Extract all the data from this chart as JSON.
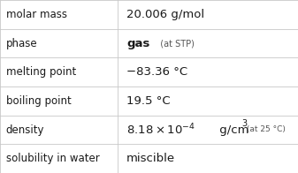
{
  "rows": [
    {
      "label": "molar mass",
      "value": "20.006 g/mol",
      "type": "normal"
    },
    {
      "label": "phase",
      "value": "gas",
      "type": "phase"
    },
    {
      "label": "melting point",
      "value": "−83.36 °C",
      "type": "normal"
    },
    {
      "label": "boiling point",
      "value": "19.5 °C",
      "type": "normal"
    },
    {
      "label": "density",
      "value": "",
      "type": "density"
    },
    {
      "label": "solubility in water",
      "value": "miscible",
      "type": "normal"
    }
  ],
  "col_split": 0.395,
  "border_color": "#c8c8c8",
  "text_color": "#1a1a1a",
  "label_font_size": 8.5,
  "value_font_size": 9.5,
  "small_font_size": 7.0,
  "phase_suffix": "(at STP)",
  "density_base": "8.18×10",
  "density_exp": "−4",
  "density_unit": " g/cm",
  "density_sup3": "3",
  "density_suffix": " (at 25 °C)"
}
